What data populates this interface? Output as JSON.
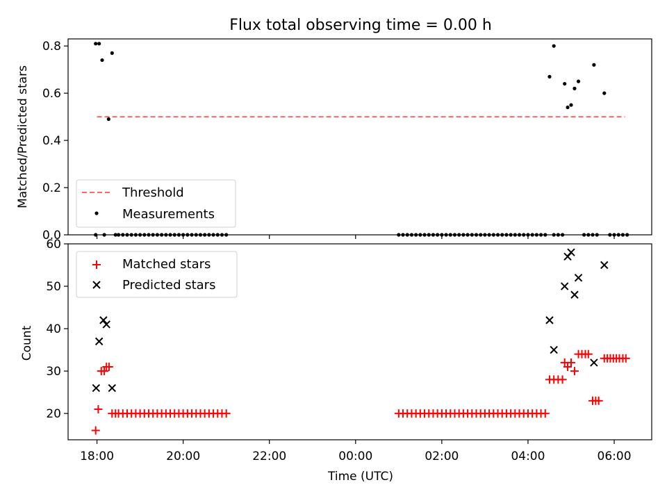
{
  "title": "Flux total observing time = 0.00 h",
  "chart_data": [
    {
      "type": "scatter",
      "panel": "top",
      "ylabel": "Matched/Predicted stars",
      "xlabel": "",
      "ylim": [
        0,
        0.83
      ],
      "yticks": [
        0.0,
        0.2,
        0.4,
        0.6,
        0.8
      ],
      "ytick_labels": [
        "0.0",
        "0.2",
        "0.4",
        "0.6",
        "0.8"
      ],
      "xlim": [
        17.33,
        30.87
      ],
      "grid": false,
      "legend_position": "lower-left",
      "series": [
        {
          "name": "Threshold",
          "style": "dashed-line",
          "color": "#ff6666",
          "x": [
            18.0,
            30.25
          ],
          "y": [
            0.5,
            0.5
          ]
        },
        {
          "name": "Measurements",
          "style": "dot",
          "color": "#000000",
          "x": [
            17.97,
            18.05,
            18.12,
            18.27,
            18.35,
            18.43
          ],
          "y": [
            0.81,
            0.81,
            0.74,
            0.49,
            0.77,
            0.0
          ],
          "zero_x": [
            17.97,
            18.17,
            18.5,
            18.6,
            18.7,
            18.8,
            18.9,
            19.0,
            19.1,
            19.2,
            19.3,
            19.4,
            19.5,
            19.6,
            19.7,
            19.8,
            19.9,
            20.0,
            20.1,
            20.2,
            20.3,
            20.4,
            20.5,
            20.6,
            20.7,
            20.8,
            20.9,
            21.0,
            25.0,
            25.1,
            25.2,
            25.3,
            25.4,
            25.5,
            25.6,
            25.7,
            25.8,
            25.9,
            26.0,
            26.1,
            26.2,
            26.3,
            26.4,
            26.5,
            26.6,
            26.7,
            26.8,
            26.9,
            27.0,
            27.1,
            27.2,
            27.3,
            27.4,
            27.5,
            27.6,
            27.7,
            27.8,
            27.9,
            28.0,
            28.1,
            28.2,
            28.3,
            28.4,
            28.6,
            28.7,
            28.8,
            29.3,
            29.4,
            29.5,
            29.6,
            29.9,
            30.0,
            30.1,
            30.2,
            30.3
          ],
          "extra_x": [
            28.5,
            28.6,
            28.85,
            28.92,
            29.0,
            29.08,
            29.17,
            29.53,
            29.77
          ],
          "extra_y": [
            0.67,
            0.8,
            0.64,
            0.54,
            0.55,
            0.62,
            0.65,
            0.72,
            0.6
          ]
        }
      ]
    },
    {
      "type": "scatter",
      "panel": "bottom",
      "ylabel": "Count",
      "xlabel": "Time (UTC)",
      "ylim": [
        13.8,
        60
      ],
      "yticks": [
        20,
        30,
        40,
        50,
        60
      ],
      "ytick_labels": [
        "20",
        "30",
        "40",
        "50",
        "60"
      ],
      "xlim": [
        17.33,
        30.87
      ],
      "xticks": [
        18,
        20,
        22,
        24,
        26,
        28,
        30
      ],
      "xtick_labels": [
        "18:00",
        "20:00",
        "22:00",
        "00:00",
        "02:00",
        "04:00",
        "06:00"
      ],
      "grid": false,
      "legend_position": "upper-left",
      "series": [
        {
          "name": "Matched stars",
          "style": "plus",
          "color": "#ff0000",
          "x": [
            17.97,
            18.03,
            18.1,
            18.17,
            18.22,
            18.28,
            18.35,
            18.43,
            18.5,
            18.6,
            18.7,
            18.8,
            18.9,
            19.0,
            19.1,
            19.2,
            19.3,
            19.4,
            19.5,
            19.6,
            19.7,
            19.8,
            19.9,
            20.0,
            20.1,
            20.2,
            20.3,
            20.4,
            20.5,
            20.6,
            20.7,
            20.8,
            20.9,
            21.0,
            25.0,
            25.1,
            25.2,
            25.3,
            25.4,
            25.5,
            25.6,
            25.7,
            25.8,
            25.9,
            26.0,
            26.1,
            26.2,
            26.3,
            26.4,
            26.5,
            26.6,
            26.7,
            26.8,
            26.9,
            27.0,
            27.1,
            27.2,
            27.3,
            27.4,
            27.5,
            27.6,
            27.7,
            27.8,
            27.9,
            28.0,
            28.1,
            28.2,
            28.3,
            28.4,
            28.5,
            28.6,
            28.7,
            28.8,
            28.85,
            28.92,
            29.0,
            29.08,
            29.17,
            29.25,
            29.33,
            29.4,
            29.5,
            29.57,
            29.64,
            29.77,
            29.84,
            29.91,
            29.98,
            30.05,
            30.12,
            30.2,
            30.27
          ],
          "y": [
            16,
            21,
            30,
            30,
            31,
            31,
            20,
            20,
            20,
            20,
            20,
            20,
            20,
            20,
            20,
            20,
            20,
            20,
            20,
            20,
            20,
            20,
            20,
            20,
            20,
            20,
            20,
            20,
            20,
            20,
            20,
            20,
            20,
            20,
            20,
            20,
            20,
            20,
            20,
            20,
            20,
            20,
            20,
            20,
            20,
            20,
            20,
            20,
            20,
            20,
            20,
            20,
            20,
            20,
            20,
            20,
            20,
            20,
            20,
            20,
            20,
            20,
            20,
            20,
            20,
            20,
            20,
            20,
            20,
            28,
            28,
            28,
            28,
            32,
            31,
            32,
            30,
            34,
            34,
            34,
            34,
            23,
            23,
            23,
            33,
            33,
            33,
            33,
            33,
            33,
            33,
            33
          ]
        },
        {
          "name": "Predicted stars",
          "style": "x",
          "color": "#000000",
          "x": [
            17.98,
            18.05,
            18.15,
            18.22,
            18.35,
            28.5,
            28.6,
            28.85,
            28.92,
            29.0,
            29.08,
            29.17,
            29.53,
            29.77
          ],
          "y": [
            26,
            37,
            42,
            41,
            26,
            42,
            35,
            50,
            57,
            58,
            48,
            52,
            32,
            55
          ]
        }
      ]
    }
  ]
}
